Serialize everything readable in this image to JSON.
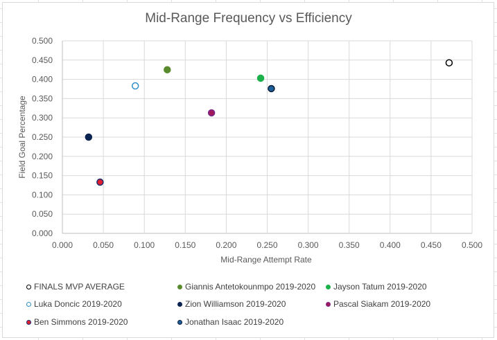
{
  "chart_data": {
    "type": "scatter",
    "title": "Mid-Range Frequency vs Efficiency",
    "xlabel": "Mid-Range Attempt Rate",
    "ylabel": "Field Goal Percentage",
    "xlim": [
      0,
      0.5
    ],
    "ylim": [
      0,
      0.5
    ],
    "x_ticks": [
      "0.000",
      "0.050",
      "0.100",
      "0.150",
      "0.200",
      "0.250",
      "0.300",
      "0.350",
      "0.400",
      "0.450",
      "0.500"
    ],
    "y_ticks": [
      "0.000",
      "0.050",
      "0.100",
      "0.150",
      "0.200",
      "0.250",
      "0.300",
      "0.350",
      "0.400",
      "0.450",
      "0.500"
    ],
    "grid": true,
    "legend_position": "bottom",
    "series": [
      {
        "name": "FINALS MVP AVERAGE",
        "x": 0.472,
        "y": 0.443,
        "fill": "#ffffff",
        "stroke": "#000000",
        "legend_row": 0,
        "legend_col": 0
      },
      {
        "name": "Giannis Antetokounmpo 2019-2020",
        "x": 0.128,
        "y": 0.425,
        "fill": "#5a8a2e",
        "stroke": "#5a8a2e",
        "legend_row": 0,
        "legend_col": 1
      },
      {
        "name": "Jayson Tatum 2019-2020",
        "x": 0.242,
        "y": 0.403,
        "fill": "#1cb04a",
        "stroke": "#1cb04a",
        "legend_row": 0,
        "legend_col": 2
      },
      {
        "name": "Luka Doncic 2019-2020",
        "x": 0.089,
        "y": 0.383,
        "fill": "#ffffff",
        "stroke": "#2e8fc8",
        "legend_row": 1,
        "legend_col": 0
      },
      {
        "name": "Zion Williamson 2019-2020",
        "x": 0.032,
        "y": 0.25,
        "fill": "#0a2350",
        "stroke": "#0a2350",
        "legend_row": 1,
        "legend_col": 1
      },
      {
        "name": "Pascal Siakam 2019-2020",
        "x": 0.182,
        "y": 0.313,
        "fill": "#a0195a",
        "stroke": "#7a2a8c",
        "legend_row": 1,
        "legend_col": 2
      },
      {
        "name": "Ben Simmons 2019-2020",
        "x": 0.046,
        "y": 0.133,
        "fill": "#e0202e",
        "stroke": "#1a2a70",
        "legend_row": 2,
        "legend_col": 0
      },
      {
        "name": "Jonathan Isaac 2019-2020",
        "x": 0.255,
        "y": 0.376,
        "fill": "#1d5f9a",
        "stroke": "#0a1a35",
        "legend_row": 2,
        "legend_col": 1
      }
    ]
  }
}
